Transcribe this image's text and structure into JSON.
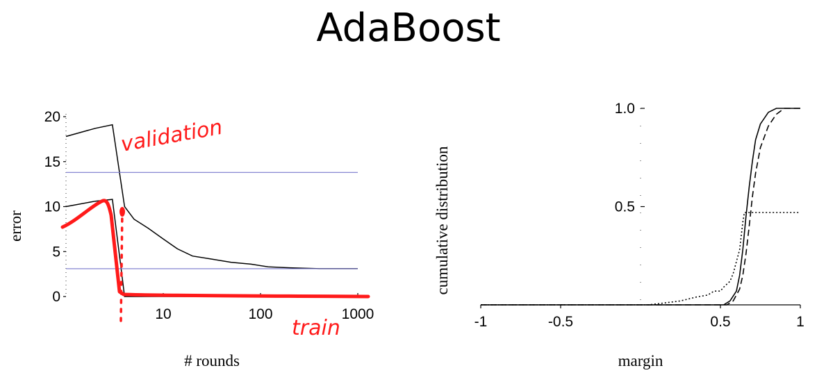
{
  "title": "AdaBoost",
  "chart_data": [
    {
      "type": "line",
      "xlabel": "# rounds",
      "ylabel": "error",
      "xscale": "log",
      "xlim": [
        1,
        1000
      ],
      "ylim": [
        0,
        20
      ],
      "xticks": [
        10,
        100,
        1000
      ],
      "yticks": [
        0,
        5,
        10,
        15,
        20
      ],
      "series": [
        {
          "x": [
            1,
            2,
            3,
            4,
            5,
            7,
            10,
            14,
            20,
            30,
            50,
            80,
            120,
            200,
            400,
            1000
          ],
          "y": [
            17.8,
            18.7,
            19.1,
            10.0,
            8.6,
            7.6,
            6.4,
            5.3,
            4.5,
            4.2,
            3.8,
            3.6,
            3.3,
            3.2,
            3.1,
            3.1
          ],
          "color": "#000000"
        },
        {
          "x": [
            1,
            2,
            3,
            3.7,
            4,
            10,
            100,
            1000
          ],
          "y": [
            10.0,
            10.6,
            10.8,
            3.0,
            0.0,
            0.0,
            0.0,
            0.0
          ],
          "color": "#000000"
        },
        {
          "x": [
            1,
            1000
          ],
          "y": [
            13.8,
            13.8
          ],
          "color": "#7777cc"
        },
        {
          "x": [
            1,
            1000
          ],
          "y": [
            3.1,
            3.1
          ],
          "color": "#7777cc"
        }
      ],
      "annotations": [
        {
          "text": "validation",
          "color": "#ff1a1a"
        },
        {
          "text": "train",
          "color": "#ff1a1a"
        }
      ]
    },
    {
      "type": "line",
      "xlabel": "margin",
      "ylabel": "cumulative distribution",
      "xlim": [
        -1,
        1
      ],
      "ylim": [
        0,
        1
      ],
      "xticks": [
        -1,
        -0.5,
        0.5,
        1
      ],
      "xtick_labels": [
        "-1",
        "-0.5",
        "0.5",
        "1"
      ],
      "yticks": [
        0.5,
        1.0
      ],
      "ytick_labels": [
        "0.5",
        "1.0"
      ],
      "series": [
        {
          "style": "dotted",
          "x": [
            -1,
            0.05,
            0.15,
            0.25,
            0.35,
            0.42,
            0.46,
            0.5,
            0.52,
            0.56,
            0.58,
            0.6,
            0.62,
            0.63,
            0.64,
            0.65,
            0.66,
            1
          ],
          "y": [
            0,
            0,
            0.01,
            0.02,
            0.04,
            0.05,
            0.07,
            0.07,
            0.09,
            0.12,
            0.16,
            0.22,
            0.28,
            0.35,
            0.42,
            0.47,
            0.47,
            0.47
          ]
        },
        {
          "style": "solid",
          "x": [
            -1,
            0.52,
            0.56,
            0.6,
            0.62,
            0.64,
            0.66,
            0.68,
            0.7,
            0.72,
            0.75,
            0.8,
            0.85,
            0.9,
            1
          ],
          "y": [
            0,
            0,
            0.02,
            0.07,
            0.15,
            0.28,
            0.45,
            0.6,
            0.73,
            0.84,
            0.92,
            0.98,
            1.0,
            1.0,
            1.0
          ]
        },
        {
          "style": "dashed",
          "x": [
            -1,
            0.54,
            0.58,
            0.62,
            0.64,
            0.66,
            0.68,
            0.7,
            0.72,
            0.75,
            0.8,
            0.85,
            0.9,
            0.95,
            1
          ],
          "y": [
            0,
            0,
            0.02,
            0.08,
            0.15,
            0.26,
            0.4,
            0.55,
            0.67,
            0.8,
            0.91,
            0.97,
            1.0,
            1.0,
            1.0
          ]
        }
      ]
    }
  ]
}
